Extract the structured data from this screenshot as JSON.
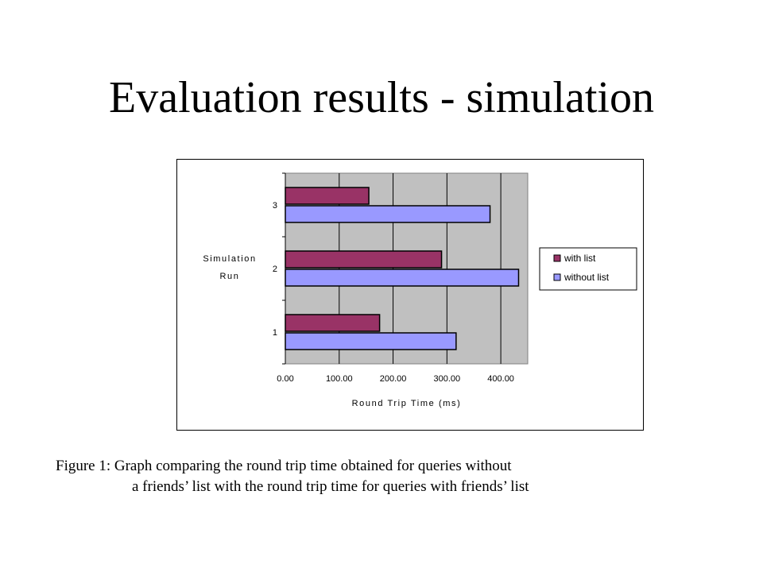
{
  "slide": {
    "title": "Evaluation results - simulation"
  },
  "caption": {
    "line1": "Figure 1: Graph comparing the round trip time obtained for queries without",
    "line2": "a friends’ list with the round trip time for queries with friends’ list"
  },
  "chart_data": {
    "type": "bar",
    "orientation": "horizontal",
    "categories": [
      "1",
      "2",
      "3"
    ],
    "series": [
      {
        "name": "with list",
        "values": [
          175,
          290,
          155
        ],
        "color": "#993366"
      },
      {
        "name": "without list",
        "values": [
          317,
          433,
          380
        ],
        "color": "#9999ff"
      }
    ],
    "xlabel": "Round Trip Time (ms)",
    "ylabel": [
      "Simulation",
      "Run"
    ],
    "xticks": [
      "0.00",
      "100.00",
      "200.00",
      "300.00",
      "400.00"
    ],
    "xlim": [
      0,
      450
    ],
    "plot_background": "#c0c0c0",
    "grid": true,
    "legend": "right"
  }
}
